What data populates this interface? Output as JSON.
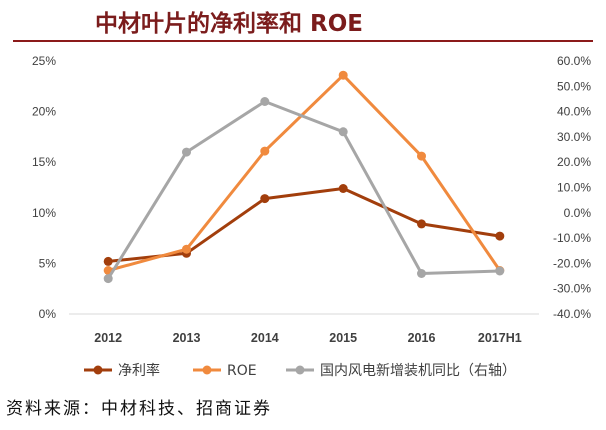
{
  "title": "中材叶片的净利率和 ROE",
  "source": "资料来源：中材科技、招商证券",
  "colors": {
    "title": "#7B1C1C",
    "rule": "#8B1A1A",
    "axis_line": "#D9D9D9",
    "text": "#404040"
  },
  "chart_data": {
    "type": "line",
    "categories": [
      "2012",
      "2013",
      "2014",
      "2015",
      "2016",
      "2017H1"
    ],
    "series": [
      {
        "name": "净利率",
        "secondary_axis": false,
        "color": "#A23E0C",
        "values": [
          5.2,
          6.0,
          11.4,
          12.4,
          8.9,
          7.7
        ]
      },
      {
        "name": "ROE",
        "secondary_axis": false,
        "color": "#F08A3E",
        "values": [
          4.3,
          6.4,
          16.1,
          23.6,
          15.6,
          4.3
        ]
      },
      {
        "name": "国内风电新增装机同比（右轴）",
        "secondary_axis": true,
        "color": "#A6A6A6",
        "values": [
          -26,
          24,
          44,
          32,
          -24,
          -23
        ]
      }
    ],
    "y_left": {
      "lim": [
        0,
        25
      ],
      "ticks": [
        0,
        5,
        10,
        15,
        20,
        25
      ],
      "tick_labels": [
        "0%",
        "5%",
        "10%",
        "15%",
        "20%",
        "25%"
      ]
    },
    "y_right": {
      "lim": [
        -40,
        60
      ],
      "ticks": [
        -40,
        -30,
        -20,
        -10,
        0,
        10,
        20,
        30,
        40,
        50,
        60
      ],
      "tick_labels": [
        "-40.0%",
        "-30.0%",
        "-20.0%",
        "-10.0%",
        "0.0%",
        "10.0%",
        "20.0%",
        "30.0%",
        "40.0%",
        "50.0%",
        "60.0%"
      ]
    },
    "grid": false,
    "markers": true,
    "legend_position": "bottom"
  }
}
